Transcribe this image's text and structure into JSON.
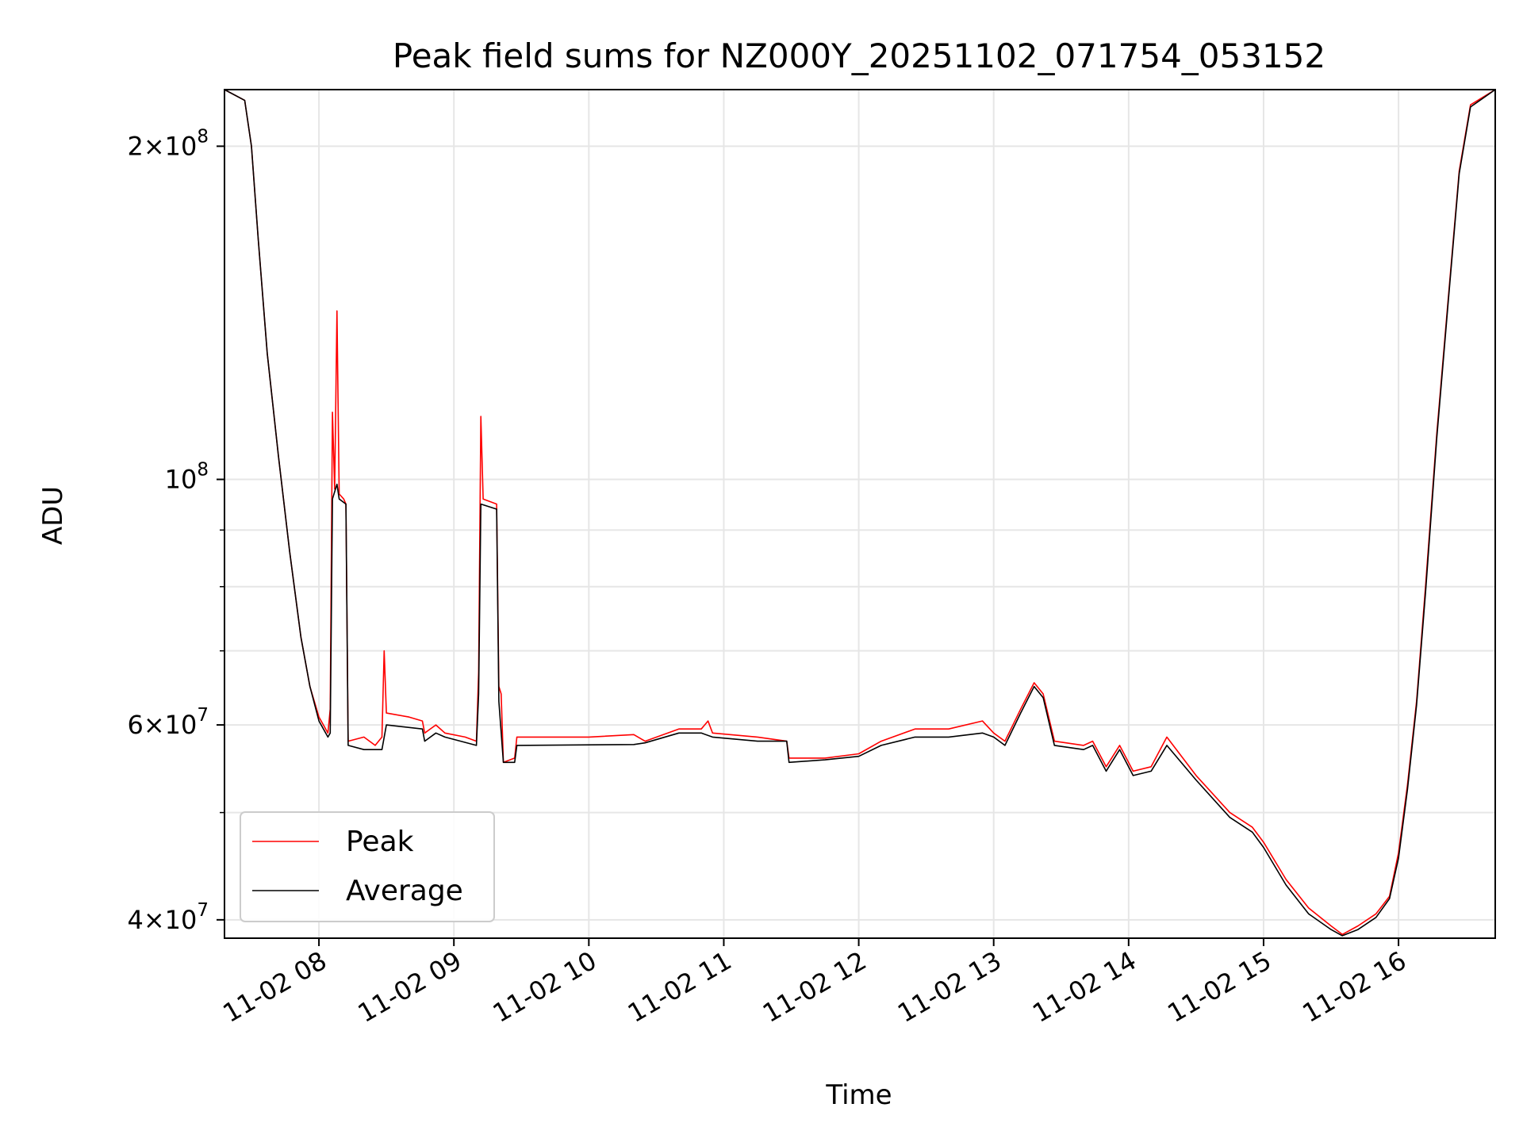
{
  "chart_data": {
    "type": "line",
    "title": "Peak field sums for NZ000Y_20251102_071754_053152",
    "xlabel": "Time",
    "ylabel": "ADU",
    "y_scale": "log",
    "ylim": [
      38500000,
      225000000
    ],
    "xlim": [
      "2025-11-02 07:18",
      "2025-11-02 16:43"
    ],
    "grid": true,
    "legend_position": "lower-left",
    "x_ticks": [
      {
        "at": "2025-11-02 08:00",
        "label": "11-02 08"
      },
      {
        "at": "2025-11-02 09:00",
        "label": "11-02 09"
      },
      {
        "at": "2025-11-02 10:00",
        "label": "11-02 10"
      },
      {
        "at": "2025-11-02 11:00",
        "label": "11-02 11"
      },
      {
        "at": "2025-11-02 12:00",
        "label": "11-02 12"
      },
      {
        "at": "2025-11-02 13:00",
        "label": "11-02 13"
      },
      {
        "at": "2025-11-02 14:00",
        "label": "11-02 14"
      },
      {
        "at": "2025-11-02 15:00",
        "label": "11-02 15"
      },
      {
        "at": "2025-11-02 16:00",
        "label": "11-02 16"
      }
    ],
    "y_major_ticks": [
      {
        "value": 40000000,
        "mantissa": "4",
        "exponent": "7"
      },
      {
        "value": 60000000,
        "mantissa": "6",
        "exponent": "7"
      },
      {
        "value": 100000000,
        "mantissa": "",
        "exponent": "8"
      },
      {
        "value": 200000000,
        "mantissa": "2",
        "exponent": "8"
      }
    ],
    "y_minor_ticks": [
      50000000,
      70000000,
      80000000,
      90000000
    ],
    "series": [
      {
        "name": "Peak",
        "color": "#ff0000",
        "points": [
          [
            "2025-11-02 07:18",
            225000000
          ],
          [
            "2025-11-02 07:27",
            220000000
          ],
          [
            "2025-11-02 07:30",
            200000000
          ],
          [
            "2025-11-02 07:33",
            165000000
          ],
          [
            "2025-11-02 07:37",
            130000000
          ],
          [
            "2025-11-02 07:42",
            105000000
          ],
          [
            "2025-11-02 07:47",
            86000000
          ],
          [
            "2025-11-02 07:52",
            72000000
          ],
          [
            "2025-11-02 07:56",
            65000000
          ],
          [
            "2025-11-02 08:00",
            61000000
          ],
          [
            "2025-11-02 08:04",
            59000000
          ],
          [
            "2025-11-02 08:05",
            62000000
          ],
          [
            "2025-11-02 08:06",
            115000000
          ],
          [
            "2025-11-02 08:07",
            98000000
          ],
          [
            "2025-11-02 08:08",
            142000000
          ],
          [
            "2025-11-02 08:09",
            97000000
          ],
          [
            "2025-11-02 08:11",
            96000000
          ],
          [
            "2025-11-02 08:12",
            95000000
          ],
          [
            "2025-11-02 08:13",
            58000000
          ],
          [
            "2025-11-02 08:20",
            58500000
          ],
          [
            "2025-11-02 08:25",
            57500000
          ],
          [
            "2025-11-02 08:28",
            58500000
          ],
          [
            "2025-11-02 08:29",
            70000000
          ],
          [
            "2025-11-02 08:30",
            61500000
          ],
          [
            "2025-11-02 08:40",
            61000000
          ],
          [
            "2025-11-02 08:46",
            60500000
          ],
          [
            "2025-11-02 08:47",
            59000000
          ],
          [
            "2025-11-02 08:52",
            60000000
          ],
          [
            "2025-11-02 08:56",
            59000000
          ],
          [
            "2025-11-02 09:05",
            58500000
          ],
          [
            "2025-11-02 09:10",
            58000000
          ],
          [
            "2025-11-02 09:11",
            67000000
          ],
          [
            "2025-11-02 09:12",
            114000000
          ],
          [
            "2025-11-02 09:13",
            96000000
          ],
          [
            "2025-11-02 09:19",
            95000000
          ],
          [
            "2025-11-02 09:20",
            65000000
          ],
          [
            "2025-11-02 09:21",
            64000000
          ],
          [
            "2025-11-02 09:22",
            55500000
          ],
          [
            "2025-11-02 09:27",
            56000000
          ],
          [
            "2025-11-02 09:28",
            58500000
          ],
          [
            "2025-11-02 10:00",
            58500000
          ],
          [
            "2025-11-02 10:20",
            58800000
          ],
          [
            "2025-11-02 10:25",
            58000000
          ],
          [
            "2025-11-02 10:40",
            59500000
          ],
          [
            "2025-11-02 10:50",
            59500000
          ],
          [
            "2025-11-02 10:53",
            60500000
          ],
          [
            "2025-11-02 10:55",
            59000000
          ],
          [
            "2025-11-02 11:15",
            58500000
          ],
          [
            "2025-11-02 11:28",
            58000000
          ],
          [
            "2025-11-02 11:29",
            56000000
          ],
          [
            "2025-11-02 11:45",
            56000000
          ],
          [
            "2025-11-02 12:00",
            56500000
          ],
          [
            "2025-11-02 12:10",
            58000000
          ],
          [
            "2025-11-02 12:25",
            59500000
          ],
          [
            "2025-11-02 12:40",
            59500000
          ],
          [
            "2025-11-02 12:55",
            60500000
          ],
          [
            "2025-11-02 13:00",
            59000000
          ],
          [
            "2025-11-02 13:05",
            58000000
          ],
          [
            "2025-11-02 13:12",
            62000000
          ],
          [
            "2025-11-02 13:18",
            65500000
          ],
          [
            "2025-11-02 13:22",
            64000000
          ],
          [
            "2025-11-02 13:27",
            58000000
          ],
          [
            "2025-11-02 13:40",
            57500000
          ],
          [
            "2025-11-02 13:44",
            58000000
          ],
          [
            "2025-11-02 13:50",
            55000000
          ],
          [
            "2025-11-02 13:56",
            57500000
          ],
          [
            "2025-11-02 14:02",
            54500000
          ],
          [
            "2025-11-02 14:10",
            55000000
          ],
          [
            "2025-11-02 14:17",
            58500000
          ],
          [
            "2025-11-02 14:30",
            54000000
          ],
          [
            "2025-11-02 14:45",
            50000000
          ],
          [
            "2025-11-02 14:55",
            48500000
          ],
          [
            "2025-11-02 15:00",
            47000000
          ],
          [
            "2025-11-02 15:10",
            43500000
          ],
          [
            "2025-11-02 15:20",
            41000000
          ],
          [
            "2025-11-02 15:30",
            39500000
          ],
          [
            "2025-11-02 15:35",
            38800000
          ],
          [
            "2025-11-02 15:42",
            39500000
          ],
          [
            "2025-11-02 15:50",
            40500000
          ],
          [
            "2025-11-02 15:56",
            42000000
          ],
          [
            "2025-11-02 16:00",
            46000000
          ],
          [
            "2025-11-02 16:04",
            53000000
          ],
          [
            "2025-11-02 16:08",
            63000000
          ],
          [
            "2025-11-02 16:12",
            80000000
          ],
          [
            "2025-11-02 16:17",
            110000000
          ],
          [
            "2025-11-02 16:22",
            145000000
          ],
          [
            "2025-11-02 16:27",
            190000000
          ],
          [
            "2025-11-02 16:32",
            218000000
          ],
          [
            "2025-11-02 16:43",
            225000000
          ]
        ]
      },
      {
        "name": "Average",
        "color": "#000000",
        "points": [
          [
            "2025-11-02 07:18",
            225000000
          ],
          [
            "2025-11-02 07:27",
            220000000
          ],
          [
            "2025-11-02 07:30",
            200000000
          ],
          [
            "2025-11-02 07:33",
            165000000
          ],
          [
            "2025-11-02 07:37",
            130000000
          ],
          [
            "2025-11-02 07:42",
            105000000
          ],
          [
            "2025-11-02 07:47",
            86000000
          ],
          [
            "2025-11-02 07:52",
            72000000
          ],
          [
            "2025-11-02 07:56",
            65000000
          ],
          [
            "2025-11-02 08:00",
            60500000
          ],
          [
            "2025-11-02 08:04",
            58500000
          ],
          [
            "2025-11-02 08:05",
            59000000
          ],
          [
            "2025-11-02 08:06",
            96000000
          ],
          [
            "2025-11-02 08:08",
            99000000
          ],
          [
            "2025-11-02 08:09",
            96000000
          ],
          [
            "2025-11-02 08:12",
            95000000
          ],
          [
            "2025-11-02 08:13",
            57500000
          ],
          [
            "2025-11-02 08:20",
            57000000
          ],
          [
            "2025-11-02 08:28",
            57000000
          ],
          [
            "2025-11-02 08:30",
            60000000
          ],
          [
            "2025-11-02 08:46",
            59500000
          ],
          [
            "2025-11-02 08:47",
            58000000
          ],
          [
            "2025-11-02 08:52",
            59000000
          ],
          [
            "2025-11-02 08:56",
            58500000
          ],
          [
            "2025-11-02 09:10",
            57500000
          ],
          [
            "2025-11-02 09:11",
            64000000
          ],
          [
            "2025-11-02 09:12",
            95000000
          ],
          [
            "2025-11-02 09:19",
            94000000
          ],
          [
            "2025-11-02 09:20",
            63000000
          ],
          [
            "2025-11-02 09:22",
            55500000
          ],
          [
            "2025-11-02 09:27",
            55500000
          ],
          [
            "2025-11-02 09:28",
            57500000
          ],
          [
            "2025-11-02 10:20",
            57600000
          ],
          [
            "2025-11-02 10:25",
            57800000
          ],
          [
            "2025-11-02 10:40",
            59000000
          ],
          [
            "2025-11-02 10:50",
            59000000
          ],
          [
            "2025-11-02 10:55",
            58500000
          ],
          [
            "2025-11-02 11:15",
            58000000
          ],
          [
            "2025-11-02 11:28",
            58000000
          ],
          [
            "2025-11-02 11:29",
            55500000
          ],
          [
            "2025-11-02 11:45",
            55800000
          ],
          [
            "2025-11-02 12:00",
            56200000
          ],
          [
            "2025-11-02 12:10",
            57500000
          ],
          [
            "2025-11-02 12:25",
            58500000
          ],
          [
            "2025-11-02 12:40",
            58500000
          ],
          [
            "2025-11-02 12:55",
            59000000
          ],
          [
            "2025-11-02 13:00",
            58500000
          ],
          [
            "2025-11-02 13:05",
            57500000
          ],
          [
            "2025-11-02 13:12",
            61500000
          ],
          [
            "2025-11-02 13:18",
            65000000
          ],
          [
            "2025-11-02 13:22",
            63500000
          ],
          [
            "2025-11-02 13:27",
            57500000
          ],
          [
            "2025-11-02 13:40",
            57000000
          ],
          [
            "2025-11-02 13:44",
            57500000
          ],
          [
            "2025-11-02 13:50",
            54500000
          ],
          [
            "2025-11-02 13:56",
            57000000
          ],
          [
            "2025-11-02 14:02",
            54000000
          ],
          [
            "2025-11-02 14:10",
            54500000
          ],
          [
            "2025-11-02 14:17",
            57500000
          ],
          [
            "2025-11-02 14:30",
            53500000
          ],
          [
            "2025-11-02 14:45",
            49500000
          ],
          [
            "2025-11-02 14:55",
            48000000
          ],
          [
            "2025-11-02 15:00",
            46500000
          ],
          [
            "2025-11-02 15:10",
            43000000
          ],
          [
            "2025-11-02 15:20",
            40500000
          ],
          [
            "2025-11-02 15:30",
            39200000
          ],
          [
            "2025-11-02 15:35",
            38700000
          ],
          [
            "2025-11-02 15:42",
            39200000
          ],
          [
            "2025-11-02 15:50",
            40200000
          ],
          [
            "2025-11-02 15:56",
            41800000
          ],
          [
            "2025-11-02 16:00",
            45500000
          ],
          [
            "2025-11-02 16:04",
            52500000
          ],
          [
            "2025-11-02 16:08",
            62500000
          ],
          [
            "2025-11-02 16:12",
            79000000
          ],
          [
            "2025-11-02 16:17",
            109000000
          ],
          [
            "2025-11-02 16:22",
            144000000
          ],
          [
            "2025-11-02 16:27",
            189000000
          ],
          [
            "2025-11-02 16:32",
            217000000
          ],
          [
            "2025-11-02 16:43",
            225000000
          ]
        ]
      }
    ]
  }
}
